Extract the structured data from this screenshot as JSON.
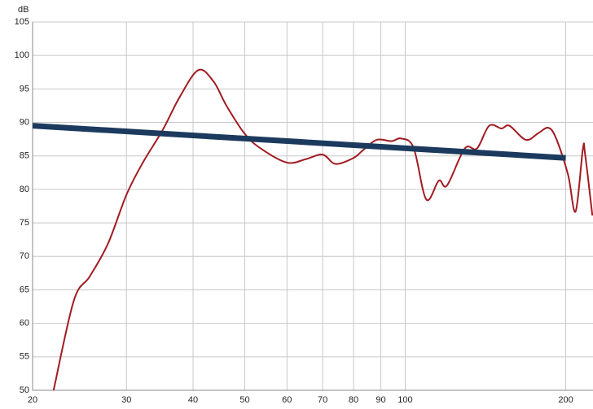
{
  "chart_data": {
    "type": "line",
    "y_label": "dB",
    "log_x": true,
    "grid": true,
    "xlim": [
      20,
      225
    ],
    "ylim": [
      50,
      105
    ],
    "xticks": [
      20,
      30,
      40,
      50,
      60,
      70,
      80,
      90,
      100,
      200
    ],
    "yticks": [
      50,
      55,
      60,
      65,
      70,
      75,
      80,
      85,
      90,
      95,
      100,
      105
    ],
    "series": [
      {
        "color": "#a01c22",
        "width": 2,
        "x": [
          21.9,
          23.9,
          25.6,
          27.7,
          30,
          32.2,
          35.1,
          37.7,
          40.9,
          43.7,
          46.2,
          50,
          53.6,
          60,
          65,
          70,
          74,
          80,
          83.2,
          88.4,
          94.3,
          98.2,
          103.7,
          109.5,
          115.6,
          119.8,
          129.3,
          136.3,
          143.7,
          151.5,
          156.9,
          168.3,
          177.7,
          185.5,
          191.9,
          202,
          208.7,
          215.4,
          217.5,
          224.4
        ],
        "values": [
          50,
          63.4,
          67.0,
          71.9,
          79.2,
          84.0,
          88.9,
          93.7,
          97.8,
          96.1,
          92.5,
          88.3,
          86.1,
          84.0,
          84.5,
          85.2,
          83.8,
          84.7,
          85.8,
          87.4,
          87.2,
          87.6,
          86.2,
          78.5,
          81.3,
          80.6,
          86.1,
          86.1,
          89.5,
          89.1,
          89.5,
          87.4,
          88.4,
          89.2,
          87.6,
          82.2,
          76.7,
          86.1,
          85.2,
          76.1
        ]
      },
      {
        "color": "#1c3a5e",
        "width": 7,
        "x": [
          20,
          200
        ],
        "values": [
          89.5,
          84.7
        ]
      }
    ]
  }
}
